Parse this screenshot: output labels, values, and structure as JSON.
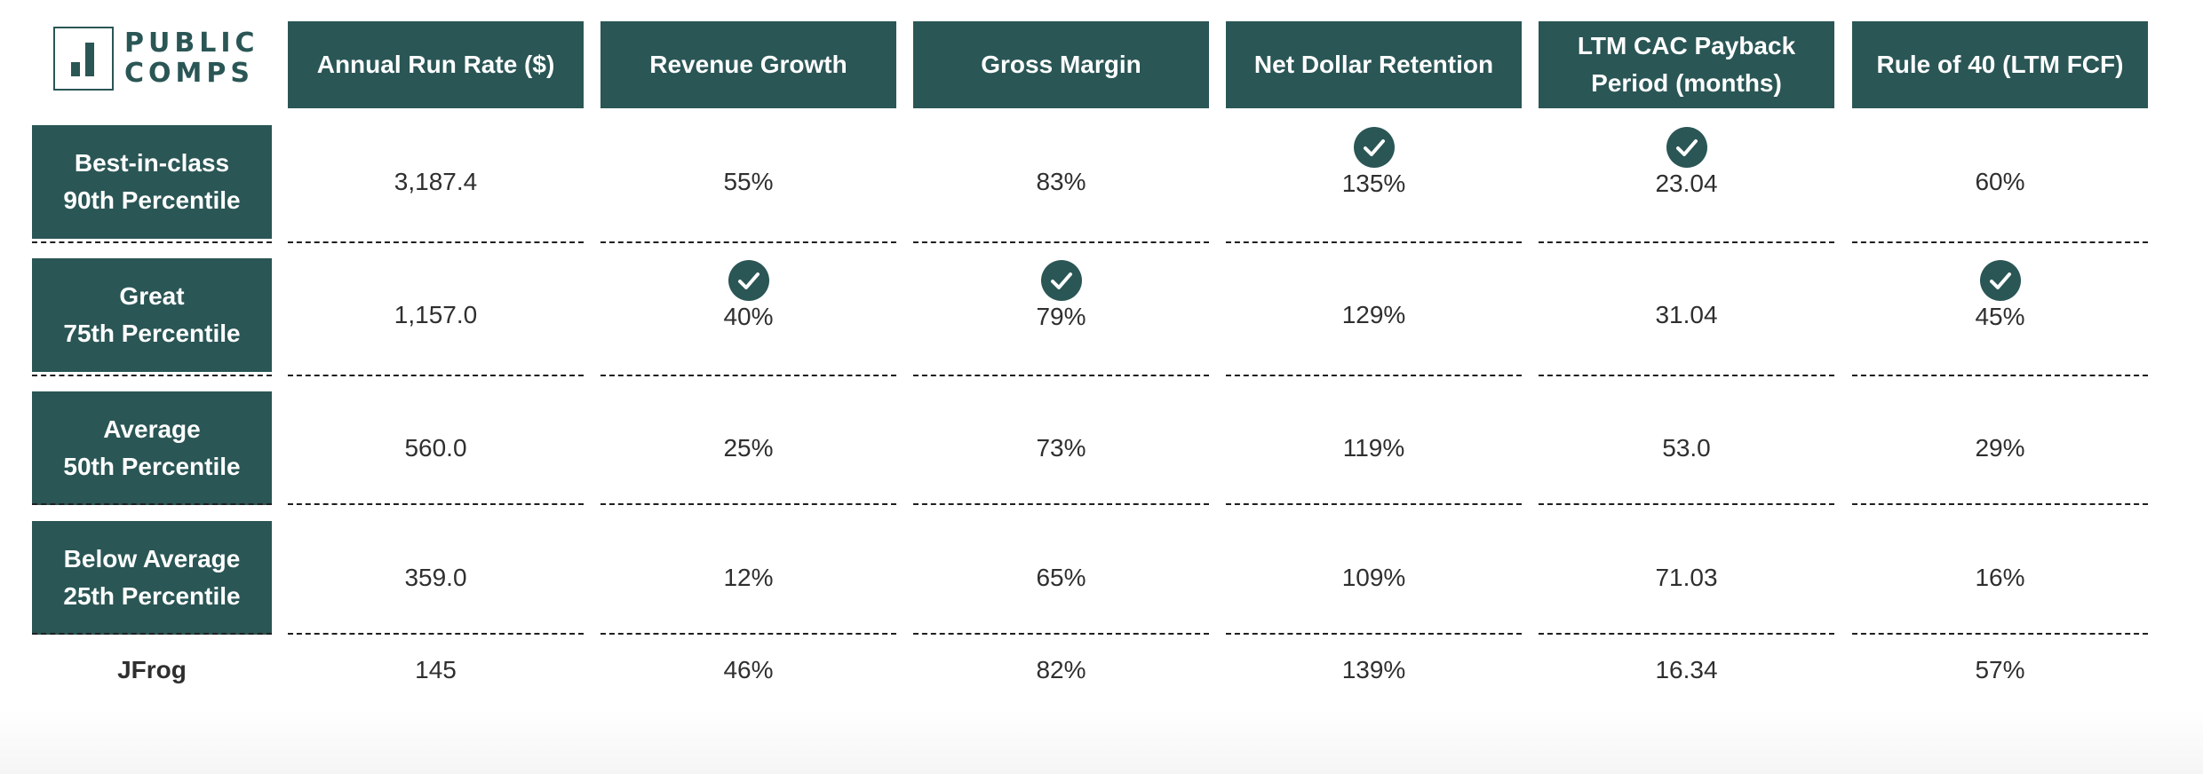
{
  "logo": {
    "text_line1": "PUBLIC",
    "text_line2": "COMPS",
    "icon": "bar-chart-logo-icon"
  },
  "colors": {
    "header_bg": "#2a5655",
    "header_text": "#ffffff",
    "body_text": "#2f2f2f",
    "separator": "#1f1f1f"
  },
  "chart_data": {
    "type": "table",
    "columns": [
      "Annual Run Rate ($)",
      "Revenue Growth",
      "Gross Margin",
      "Net Dollar Retention",
      "LTM CAC Payback Period (months)",
      "Rule of 40 (LTM FCF)"
    ],
    "rows": [
      {
        "label_line1": "Best-in-class",
        "label_line2": "90th Percentile",
        "values": [
          "3,187.4",
          "55%",
          "83%",
          "135%",
          "23.04",
          "60%"
        ],
        "checks": [
          false,
          false,
          false,
          true,
          true,
          false
        ]
      },
      {
        "label_line1": "Great",
        "label_line2": "75th Percentile",
        "values": [
          "1,157.0",
          "40%",
          "79%",
          "129%",
          "31.04",
          "45%"
        ],
        "checks": [
          false,
          true,
          true,
          false,
          false,
          true
        ]
      },
      {
        "label_line1": "Average",
        "label_line2": "50th Percentile",
        "values": [
          "560.0",
          "25%",
          "73%",
          "119%",
          "53.0",
          "29%"
        ],
        "checks": [
          false,
          false,
          false,
          false,
          false,
          false
        ]
      },
      {
        "label_line1": "Below Average",
        "label_line2": "25th Percentile",
        "values": [
          "359.0",
          "12%",
          "65%",
          "109%",
          "71.03",
          "16%"
        ],
        "checks": [
          false,
          false,
          false,
          false,
          false,
          false
        ]
      }
    ],
    "company": {
      "label": "JFrog",
      "values": [
        "145",
        "46%",
        "82%",
        "139%",
        "16.34",
        "57%"
      ]
    },
    "check_icon": "checkmark-circle-icon"
  }
}
